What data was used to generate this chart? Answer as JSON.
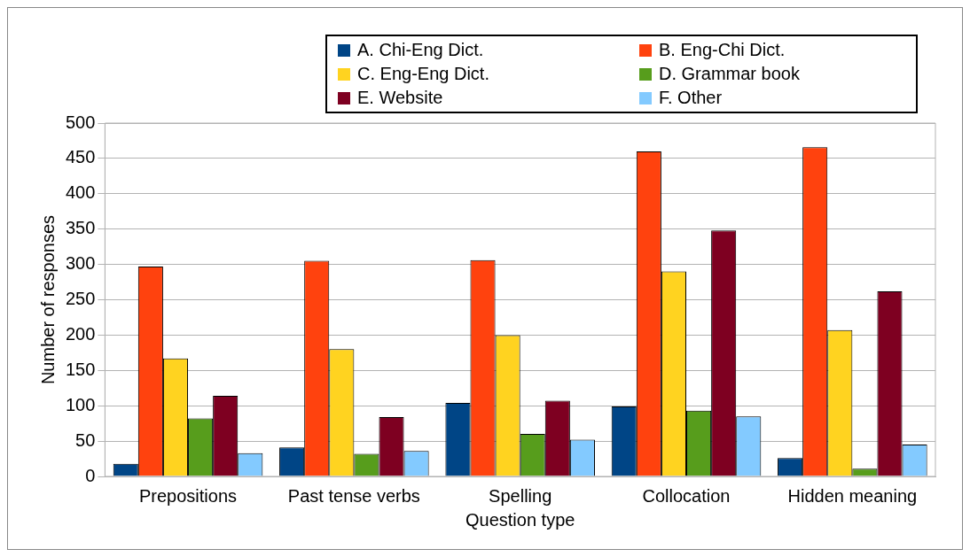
{
  "chart_data": {
    "type": "bar",
    "xlabel": "Question type",
    "ylabel": "Number of responses",
    "categories": [
      "Prepositions",
      "Past tense verbs",
      "Spelling",
      "Collocation",
      "Hidden meaning"
    ],
    "series": [
      {
        "name": "A. Chi-Eng Dict.",
        "color": "#004586",
        "values": [
          18,
          41,
          104,
          99,
          26
        ]
      },
      {
        "name": "B. Eng-Chi Dict.",
        "color": "#ff420e",
        "values": [
          297,
          305,
          306,
          460,
          466
        ]
      },
      {
        "name": "C. Eng-Eng Dict.",
        "color": "#ffd320",
        "values": [
          167,
          180,
          200,
          290,
          207
        ]
      },
      {
        "name": "D. Grammar book",
        "color": "#579d1c",
        "values": [
          82,
          32,
          60,
          93,
          11
        ]
      },
      {
        "name": "E. Website",
        "color": "#7e0021",
        "values": [
          114,
          84,
          107,
          348,
          262
        ]
      },
      {
        "name": "F. Other",
        "color": "#83caff",
        "values": [
          33,
          36,
          52,
          85,
          45
        ]
      }
    ],
    "ylim": [
      0,
      500
    ],
    "yticks": [
      0,
      50,
      100,
      150,
      200,
      250,
      300,
      350,
      400,
      450,
      500
    ],
    "grid": "y",
    "legend": "top right"
  }
}
